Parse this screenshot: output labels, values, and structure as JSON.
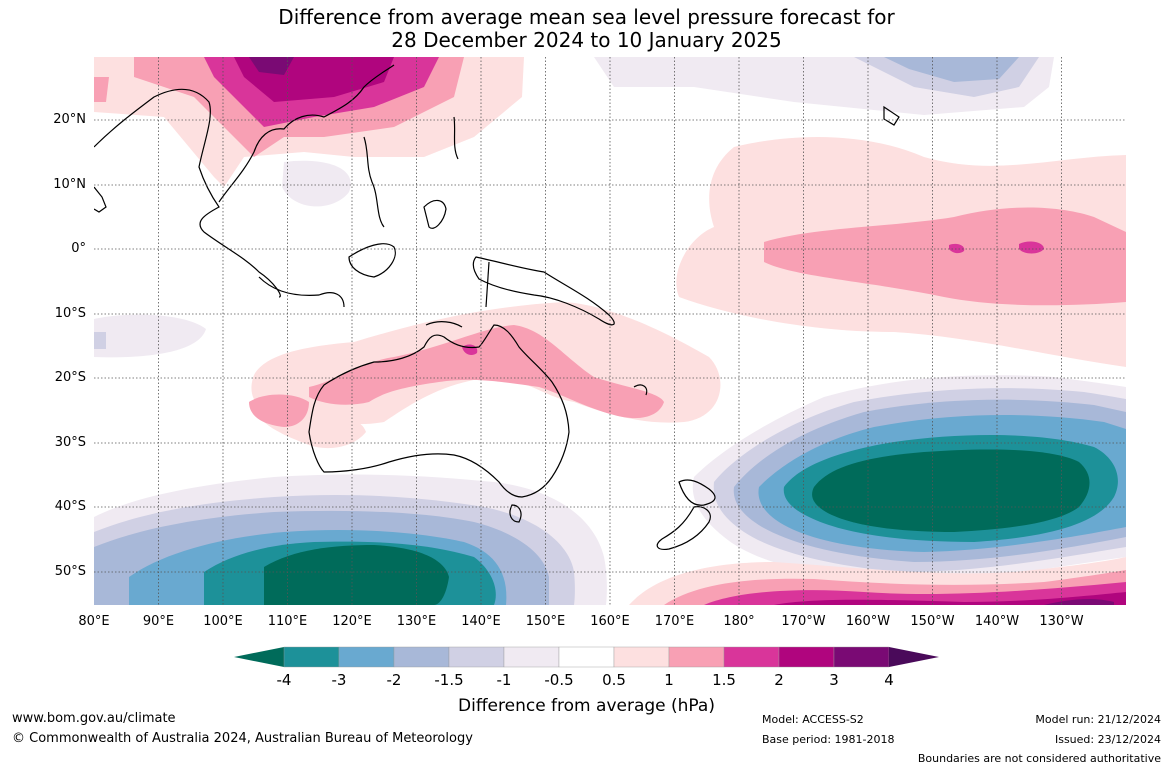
{
  "title_line1": "Difference from average mean sea level pressure forecast for",
  "title_line2": "28 December 2024 to 10 January 2025",
  "lat_labels": [
    "20°N",
    "10°N",
    "0°",
    "10°S",
    "20°S",
    "30°S",
    "40°S",
    "50°S"
  ],
  "lon_labels": [
    "80°E",
    "90°E",
    "100°E",
    "110°E",
    "120°E",
    "130°E",
    "140°E",
    "150°E",
    "160°E",
    "170°E",
    "180°",
    "170°W",
    "160°W",
    "150°W",
    "140°W",
    "130°W"
  ],
  "colorbar": {
    "ticks": [
      "-4",
      "-3",
      "-2",
      "-1.5",
      "-1",
      "-0.5",
      "0.5",
      "1",
      "1.5",
      "2",
      "3",
      "4"
    ],
    "colors": [
      "#006b5a",
      "#1d9199",
      "#69a9d0",
      "#a8b8d8",
      "#d0d0e4",
      "#f0eaf2",
      "#ffffff",
      "#fde0e0",
      "#f8a0b4",
      "#d9359a",
      "#b0057e",
      "#7a0a74",
      "#4a0a5a"
    ],
    "title": "Difference from average (hPa)"
  },
  "footer": {
    "url": "www.bom.gov.au/climate",
    "copyright": "© Commonwealth of Australia 2024, Australian Bureau of Meteorology",
    "model": "Model: ACCESS-S2",
    "base_period": "Base period: 1981-2018",
    "model_run": "Model run: 21/12/2024",
    "issued": "Issued: 23/12/2024",
    "disclaimer": "Boundaries are not considered authoritative"
  }
}
